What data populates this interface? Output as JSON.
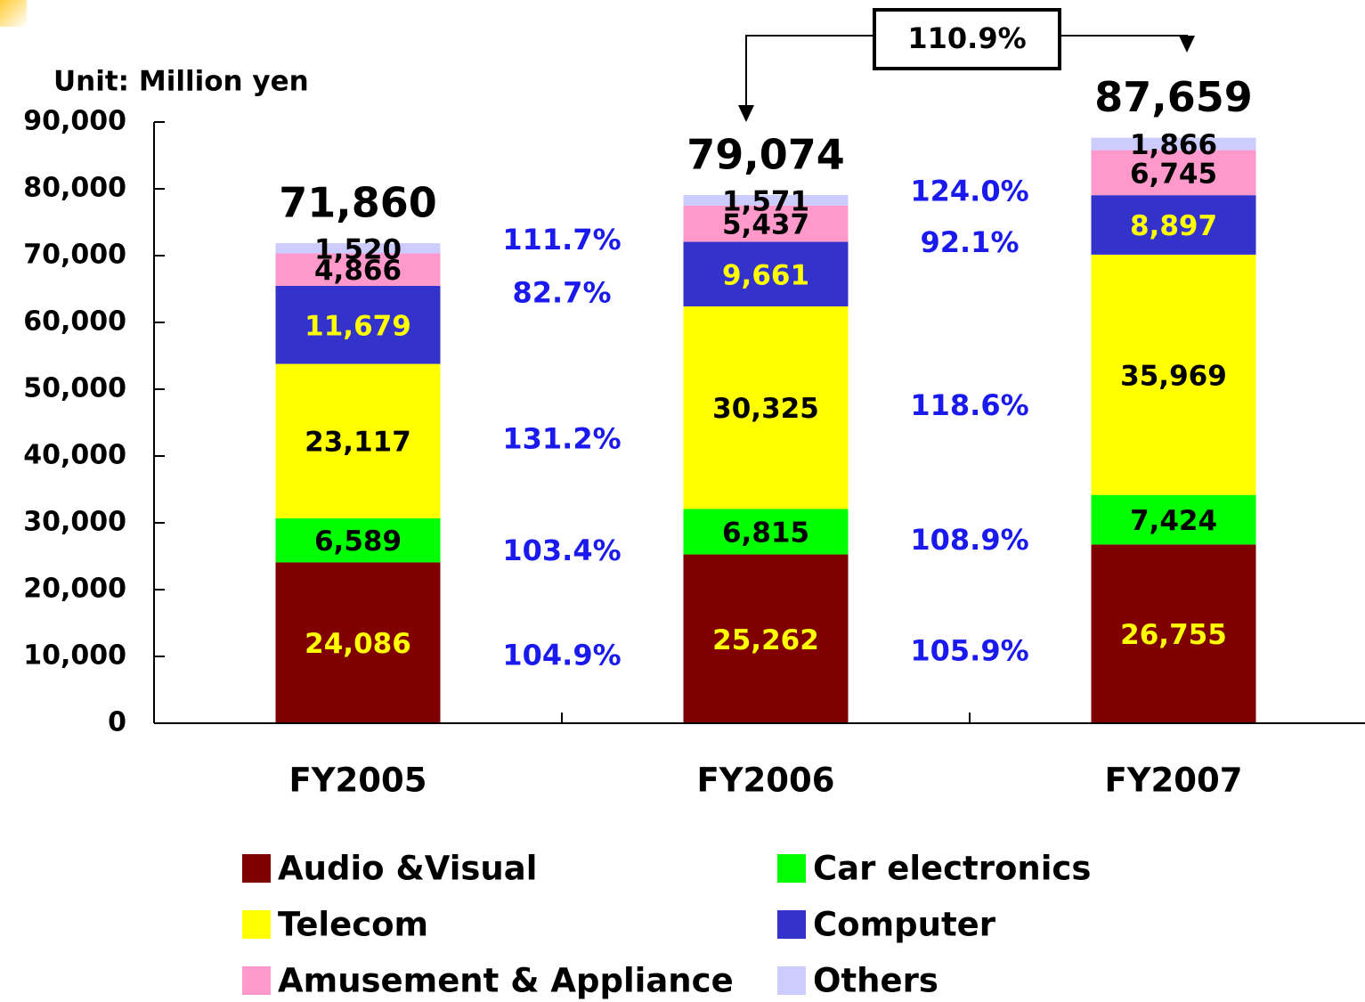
{
  "chart_data": {
    "type": "bar",
    "stacked": true,
    "y_axis_label": "Unit: Million yen",
    "categories": [
      "FY2005",
      "FY2006",
      "FY2007"
    ],
    "series": [
      {
        "name": "Audio &Visual",
        "color": "#800000",
        "label_color": "#ffff00",
        "values": [
          24086,
          25262,
          26755
        ],
        "value_labels": [
          "24,086",
          "25,262",
          "26,755"
        ],
        "growth": [
          "104.9%",
          "105.9%"
        ]
      },
      {
        "name": "Car electronics",
        "color": "#00ff00",
        "label_color": "#000000",
        "values": [
          6589,
          6815,
          7424
        ],
        "value_labels": [
          "6,589",
          "6,815",
          "7,424"
        ],
        "growth": [
          "103.4%",
          "108.9%"
        ]
      },
      {
        "name": "Telecom",
        "color": "#ffff00",
        "label_color": "#000000",
        "values": [
          23117,
          30325,
          35969
        ],
        "value_labels": [
          "23,117",
          "30,325",
          "35,969"
        ],
        "growth": [
          "131.2%",
          "118.6%"
        ]
      },
      {
        "name": "Computer",
        "color": "#3333cc",
        "label_color": "#ffff00",
        "values": [
          11679,
          9661,
          8897
        ],
        "value_labels": [
          "11,679",
          "9,661",
          "8,897"
        ],
        "growth": [
          "82.7%",
          "92.1%"
        ]
      },
      {
        "name": "Amusement & Appliance",
        "color": "#ff99cc",
        "label_color": "#000000",
        "values": [
          4866,
          5437,
          6745
        ],
        "value_labels": [
          "4,866",
          "5,437",
          "6,745"
        ],
        "growth": [
          "111.7%",
          "124.0%"
        ]
      },
      {
        "name": "Others",
        "color": "#ccccff",
        "label_color": "#000000",
        "values": [
          1520,
          1571,
          1866
        ],
        "value_labels": [
          "1,520",
          "1,571",
          "1,866"
        ]
      }
    ],
    "totals": [
      71860,
      79074,
      87659
    ],
    "total_labels": [
      "71,860",
      "79,074",
      "87,659"
    ],
    "total_growth": "110.9%",
    "growth_color": "#1a1aee",
    "ylim": [
      0,
      90000
    ],
    "yticks": [
      0,
      {
        "value": 10000,
        "label": "10,000"
      },
      {
        "value": 20000,
        "label": "20,000"
      },
      {
        "value": 30000,
        "label": "30,000"
      },
      {
        "value": 40000,
        "label": "40,000"
      },
      {
        "value": 50000,
        "label": "50,000"
      },
      {
        "value": 60000,
        "label": "60,000"
      },
      {
        "value": 70000,
        "label": "70,000"
      },
      {
        "value": 80000,
        "label": "80,000"
      },
      {
        "value": 90000,
        "label": "90,000"
      }
    ],
    "grid": false
  }
}
